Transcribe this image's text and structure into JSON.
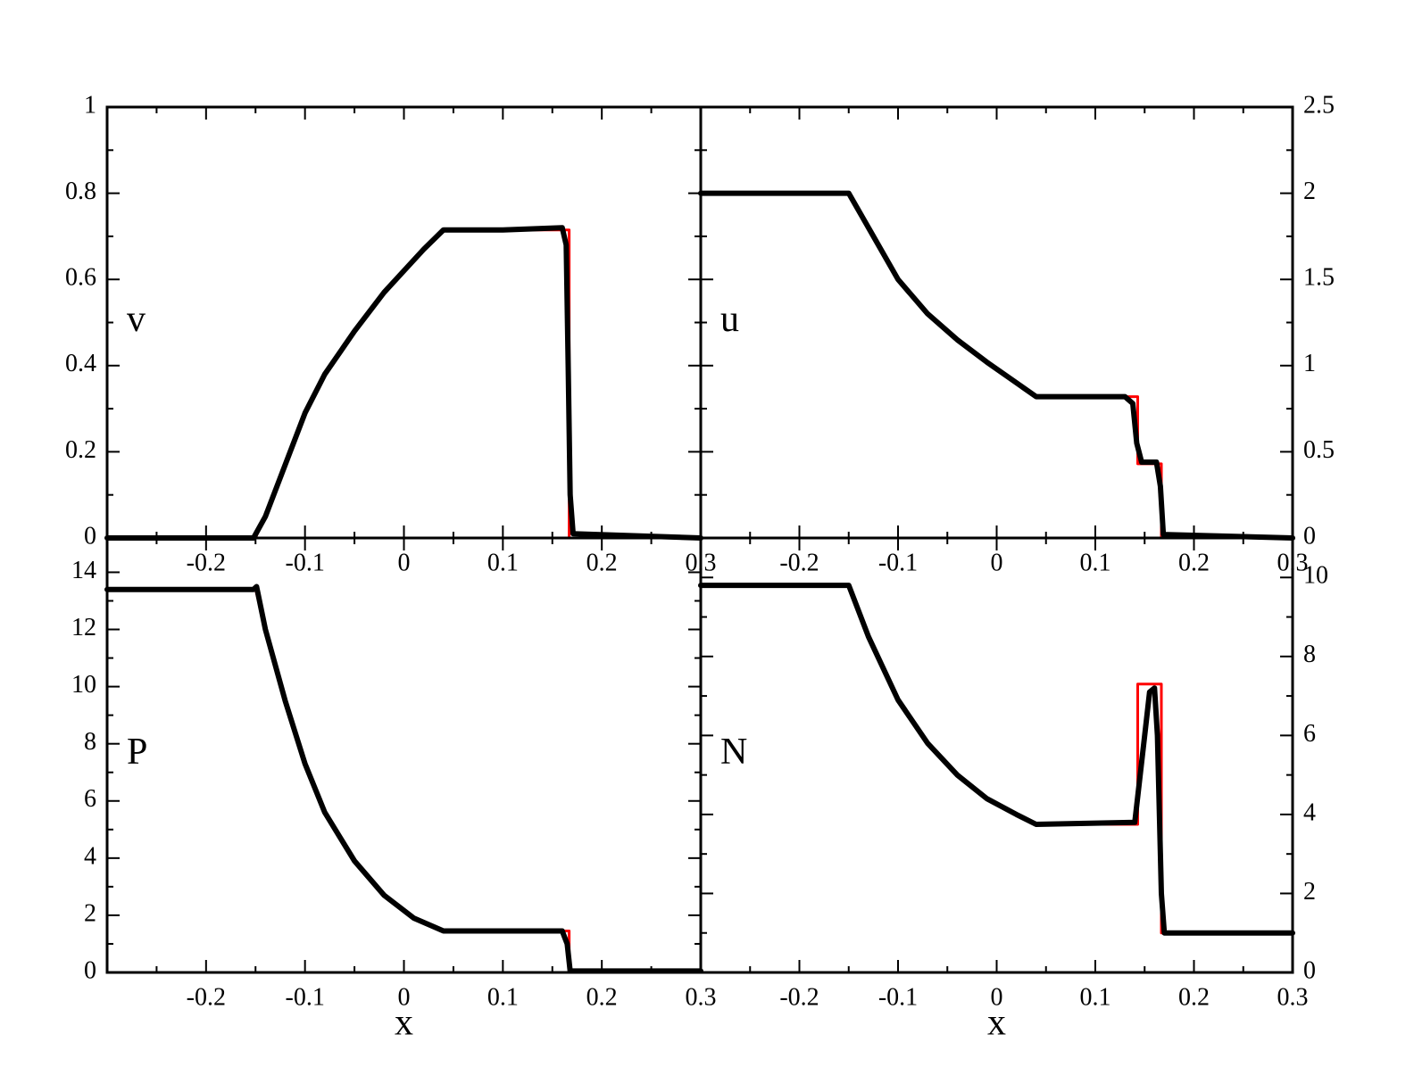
{
  "chart_data": [
    {
      "type": "line",
      "label": "v",
      "xlim": [
        -0.3,
        0.3
      ],
      "xticks": [
        -0.2,
        -0.1,
        0,
        0.1,
        0.2,
        0.3
      ],
      "ylim": [
        0,
        1
      ],
      "yticks": [
        0,
        0.2,
        0.4,
        0.6,
        0.8,
        1
      ],
      "yaxis_side": "left",
      "series": [
        {
          "color": "#ff0000",
          "x": [
            -0.3,
            -0.15,
            -0.12,
            -0.1,
            -0.08,
            -0.05,
            -0.02,
            0,
            0.02,
            0.04,
            0.167,
            0.167,
            0.3
          ],
          "values": [
            0,
            0,
            0.17,
            0.29,
            0.38,
            0.48,
            0.57,
            0.62,
            0.67,
            0.715,
            0.715,
            0,
            0
          ]
        },
        {
          "color": "#000000",
          "x": [
            -0.3,
            -0.152,
            -0.14,
            -0.12,
            -0.1,
            -0.08,
            -0.05,
            -0.02,
            0,
            0.02,
            0.04,
            0.1,
            0.16,
            0.164,
            0.166,
            0.168,
            0.171,
            0.3
          ],
          "values": [
            0,
            0,
            0.05,
            0.17,
            0.29,
            0.38,
            0.48,
            0.57,
            0.62,
            0.67,
            0.715,
            0.715,
            0.72,
            0.68,
            0.4,
            0.1,
            0.01,
            0
          ]
        }
      ]
    },
    {
      "type": "line",
      "label": "u",
      "xlim": [
        -0.3,
        0.3
      ],
      "xticks": [
        -0.2,
        -0.1,
        0,
        0.1,
        0.2,
        0.3
      ],
      "ylim": [
        0,
        2.5
      ],
      "yticks": [
        0,
        0.5,
        1,
        1.5,
        2,
        2.5
      ],
      "yaxis_side": "right",
      "series": [
        {
          "color": "#ff0000",
          "x": [
            -0.3,
            -0.15,
            -0.13,
            -0.1,
            -0.07,
            -0.04,
            -0.01,
            0.02,
            0.04,
            0.143,
            0.143,
            0.167,
            0.167,
            0.3
          ],
          "values": [
            2,
            2,
            1.8,
            1.5,
            1.3,
            1.15,
            1.02,
            0.9,
            0.82,
            0.82,
            0.43,
            0.43,
            0,
            0
          ]
        },
        {
          "color": "#000000",
          "x": [
            -0.3,
            -0.15,
            -0.13,
            -0.1,
            -0.07,
            -0.04,
            -0.01,
            0.02,
            0.04,
            0.13,
            0.138,
            0.142,
            0.147,
            0.162,
            0.166,
            0.169,
            0.3
          ],
          "values": [
            2,
            2,
            1.8,
            1.5,
            1.3,
            1.15,
            1.02,
            0.9,
            0.82,
            0.82,
            0.78,
            0.55,
            0.44,
            0.44,
            0.3,
            0.02,
            0
          ]
        }
      ]
    },
    {
      "type": "line",
      "label": "P",
      "xlabel": "x",
      "xlim": [
        -0.3,
        0.3
      ],
      "xticks": [
        -0.2,
        -0.1,
        0,
        0.1,
        0.2,
        0.3
      ],
      "ylim": [
        0,
        15.2
      ],
      "yticks": [
        0,
        2,
        4,
        6,
        8,
        10,
        12,
        14
      ],
      "yaxis_side": "left",
      "series": [
        {
          "color": "#ff0000",
          "x": [
            -0.3,
            -0.15,
            -0.14,
            -0.12,
            -0.1,
            -0.08,
            -0.05,
            -0.02,
            0.01,
            0.04,
            0.167,
            0.167,
            0.3
          ],
          "values": [
            13.4,
            13.4,
            12,
            9.5,
            7.3,
            5.6,
            3.9,
            2.7,
            1.9,
            1.45,
            1.45,
            0.05,
            0.05
          ]
        },
        {
          "color": "#000000",
          "x": [
            -0.3,
            -0.152,
            -0.149,
            -0.14,
            -0.12,
            -0.1,
            -0.08,
            -0.05,
            -0.02,
            0.01,
            0.04,
            0.16,
            0.165,
            0.168,
            0.3
          ],
          "values": [
            13.4,
            13.4,
            13.5,
            12,
            9.5,
            7.3,
            5.6,
            3.9,
            2.7,
            1.9,
            1.45,
            1.45,
            1,
            0.05,
            0.05
          ]
        }
      ]
    },
    {
      "type": "line",
      "label": "N",
      "xlabel": "x",
      "xlim": [
        -0.3,
        0.3
      ],
      "xticks": [
        -0.2,
        -0.1,
        0,
        0.1,
        0.2,
        0.3
      ],
      "ylim": [
        0,
        11
      ],
      "yticks": [
        0,
        2,
        4,
        6,
        8,
        10
      ],
      "yaxis_side": "right",
      "series": [
        {
          "color": "#ff0000",
          "x": [
            -0.3,
            -0.15,
            -0.13,
            -0.1,
            -0.07,
            -0.04,
            -0.01,
            0.02,
            0.04,
            0.143,
            0.143,
            0.167,
            0.167,
            0.3
          ],
          "values": [
            9.8,
            9.8,
            8.5,
            6.9,
            5.8,
            5,
            4.4,
            4,
            3.75,
            3.75,
            7.3,
            7.3,
            1,
            1
          ]
        },
        {
          "color": "#000000",
          "x": [
            -0.3,
            -0.15,
            -0.13,
            -0.1,
            -0.07,
            -0.04,
            -0.01,
            0.02,
            0.04,
            0.14,
            0.15,
            0.155,
            0.16,
            0.163,
            0.167,
            0.17,
            0.3
          ],
          "values": [
            9.8,
            9.8,
            8.5,
            6.9,
            5.8,
            5,
            4.4,
            4,
            3.75,
            3.8,
            6,
            7.1,
            7.2,
            6,
            2,
            1,
            1
          ]
        }
      ]
    }
  ]
}
